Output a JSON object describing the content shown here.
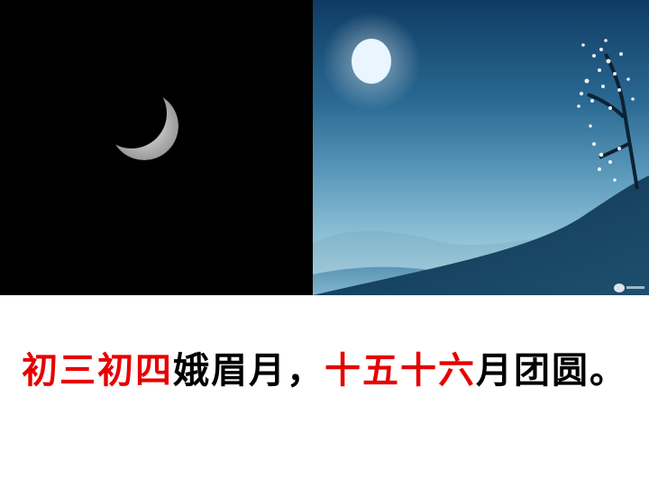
{
  "caption": {
    "part1": "初三初四",
    "part2": "娥眉月，",
    "part3": "十五十六",
    "part4": "月团圆。"
  },
  "colors": {
    "highlight": "#e60000",
    "text": "#000000",
    "night_sky": "#000000",
    "moonlit_sky_top": "#0e3b63",
    "moonlit_sky_bottom": "#b9d9e6"
  },
  "images": {
    "left": "crescent-moon-night-sky",
    "right": "full-moon-over-hills-with-blossom-tree"
  }
}
